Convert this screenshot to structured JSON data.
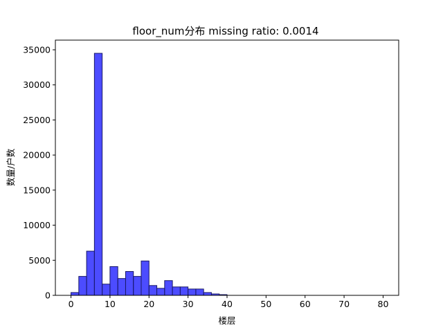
{
  "chart_data": {
    "type": "bar",
    "title": "floor_num分布  missing ratio: 0.0014",
    "xlabel": "楼层",
    "ylabel": "数量/户数",
    "xlim": [
      -4,
      84
    ],
    "ylim": [
      0,
      35000
    ],
    "x_ticks": [
      0,
      10,
      20,
      30,
      40,
      50,
      60,
      70,
      80
    ],
    "y_ticks": [
      0,
      5000,
      10000,
      15000,
      20000,
      25000,
      30000,
      35000
    ],
    "bin_width": 2,
    "bins": [
      {
        "x0": 0,
        "value": 400
      },
      {
        "x0": 2,
        "value": 2700
      },
      {
        "x0": 4,
        "value": 6300
      },
      {
        "x0": 6,
        "value": 34500
      },
      {
        "x0": 8,
        "value": 1600
      },
      {
        "x0": 10,
        "value": 4100
      },
      {
        "x0": 12,
        "value": 2400
      },
      {
        "x0": 14,
        "value": 3400
      },
      {
        "x0": 16,
        "value": 2700
      },
      {
        "x0": 18,
        "value": 4900
      },
      {
        "x0": 20,
        "value": 1400
      },
      {
        "x0": 22,
        "value": 1000
      },
      {
        "x0": 24,
        "value": 2100
      },
      {
        "x0": 26,
        "value": 1200
      },
      {
        "x0": 28,
        "value": 1200
      },
      {
        "x0": 30,
        "value": 900
      },
      {
        "x0": 32,
        "value": 900
      },
      {
        "x0": 34,
        "value": 400
      },
      {
        "x0": 36,
        "value": 200
      },
      {
        "x0": 38,
        "value": 100
      }
    ],
    "bar_color": "#0000ff",
    "bar_edge_color": "#1a1a66",
    "grid": false,
    "legend": "none"
  }
}
